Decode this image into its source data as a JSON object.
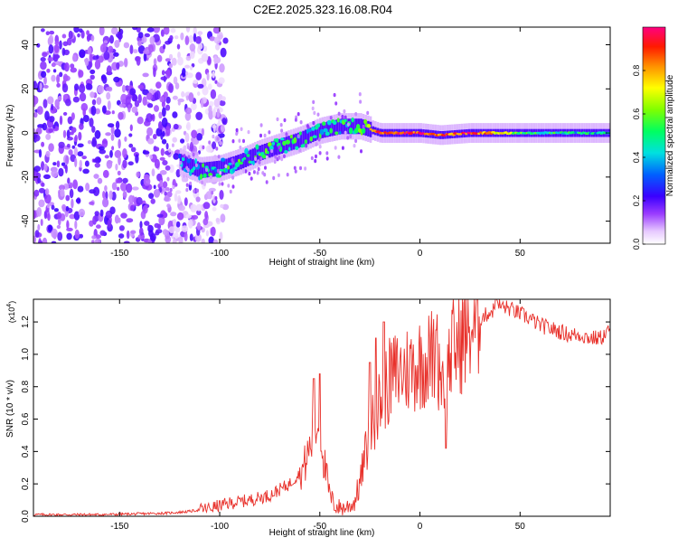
{
  "title": "C2E2.2025.323.16.08.R04",
  "chart_data": [
    {
      "type": "heatmap",
      "xlabel": "Height of straight line (km)",
      "ylabel": "Frequency (Hz)",
      "xlim": [
        -193,
        95
      ],
      "ylim": [
        -50,
        48
      ],
      "xticks": [
        -150,
        -100,
        -50,
        0,
        50
      ],
      "yticks": [
        -40,
        -20,
        0,
        20,
        40
      ],
      "colorbar": {
        "label": "Normalized spectral amplitude",
        "range": [
          0,
          1
        ],
        "ticks": [
          0.0,
          0.2,
          0.4,
          0.6,
          0.8
        ],
        "tick_labels": [
          "0.0",
          "0.2",
          "0.4",
          "0.6",
          "0.8"
        ]
      },
      "ridge": [
        {
          "x": -120,
          "f": -13,
          "amp": 0.35
        },
        {
          "x": -110,
          "f": -17,
          "amp": 0.45
        },
        {
          "x": -100,
          "f": -16,
          "amp": 0.45
        },
        {
          "x": -90,
          "f": -13,
          "amp": 0.5
        },
        {
          "x": -80,
          "f": -9,
          "amp": 0.5
        },
        {
          "x": -70,
          "f": -6,
          "amp": 0.5
        },
        {
          "x": -60,
          "f": -3,
          "amp": 0.5
        },
        {
          "x": -50,
          "f": 1,
          "amp": 0.45
        },
        {
          "x": -40,
          "f": 3,
          "amp": 0.45
        },
        {
          "x": -30,
          "f": 3,
          "amp": 0.55
        },
        {
          "x": -20,
          "f": 0,
          "amp": 0.85
        },
        {
          "x": -10,
          "f": 0,
          "amp": 0.9
        },
        {
          "x": 0,
          "f": 0,
          "amp": 0.9
        },
        {
          "x": 10,
          "f": -1,
          "amp": 0.85
        },
        {
          "x": 25,
          "f": 0,
          "amp": 0.9
        },
        {
          "x": 40,
          "f": 0,
          "amp": 0.7
        },
        {
          "x": 60,
          "f": 0,
          "amp": 0.5
        },
        {
          "x": 80,
          "f": 0,
          "amp": 0.45
        },
        {
          "x": 95,
          "f": 0,
          "amp": 0.4
        }
      ],
      "noise_region_x": [
        -193,
        -105
      ]
    },
    {
      "type": "line",
      "xlabel": "Height of straight line (km)",
      "ylabel": "SNR (10 * v/v)",
      "scale_label": "(x10",
      "scale_exp": "4",
      "scale_close": ")",
      "xlim": [
        -193,
        95
      ],
      "ylim": [
        0,
        1.34
      ],
      "xticks": [
        -150,
        -100,
        -50,
        0,
        50
      ],
      "yticks": [
        0.0,
        0.2,
        0.4,
        0.6,
        0.8,
        1.0,
        1.2
      ],
      "ytick_labels": [
        "0.0",
        "0.2",
        "0.4",
        "0.6",
        "0.8",
        "1.0",
        "1.2"
      ],
      "series": [
        {
          "name": "SNR",
          "color": "#e8302a",
          "x": [
            -193,
            -180,
            -160,
            -140,
            -125,
            -115,
            -105,
            -95,
            -85,
            -75,
            -65,
            -58,
            -53,
            -50,
            -48,
            -45,
            -42,
            -38,
            -33,
            -30,
            -27,
            -24,
            -20,
            -16,
            -12,
            -8,
            -4,
            0,
            4,
            8,
            12,
            16,
            20,
            25,
            30,
            35,
            40,
            45,
            50,
            55,
            60,
            65,
            70,
            75,
            80,
            85,
            90,
            95
          ],
          "values": [
            0.01,
            0.01,
            0.01,
            0.015,
            0.02,
            0.03,
            0.05,
            0.08,
            0.1,
            0.13,
            0.2,
            0.3,
            0.5,
            0.6,
            0.35,
            0.12,
            0.06,
            0.05,
            0.08,
            0.2,
            0.4,
            0.55,
            0.7,
            0.82,
            0.88,
            0.9,
            0.92,
            0.95,
            0.97,
            1.0,
            0.85,
            1.02,
            1.08,
            1.15,
            1.22,
            1.26,
            1.3,
            1.28,
            1.25,
            1.22,
            1.18,
            1.16,
            1.14,
            1.12,
            1.12,
            1.1,
            1.1,
            1.15
          ],
          "spikes": [
            {
              "x": -53,
              "y": 0.85
            },
            {
              "x": -50,
              "y": 0.88
            },
            {
              "x": -22,
              "y": 1.1
            },
            {
              "x": -18,
              "y": 1.2
            },
            {
              "x": -25,
              "y": 0.95
            },
            {
              "x": 13,
              "y": 0.42
            },
            {
              "x": 8,
              "y": 1.15
            },
            {
              "x": 38,
              "y": 1.34
            }
          ]
        }
      ]
    }
  ]
}
